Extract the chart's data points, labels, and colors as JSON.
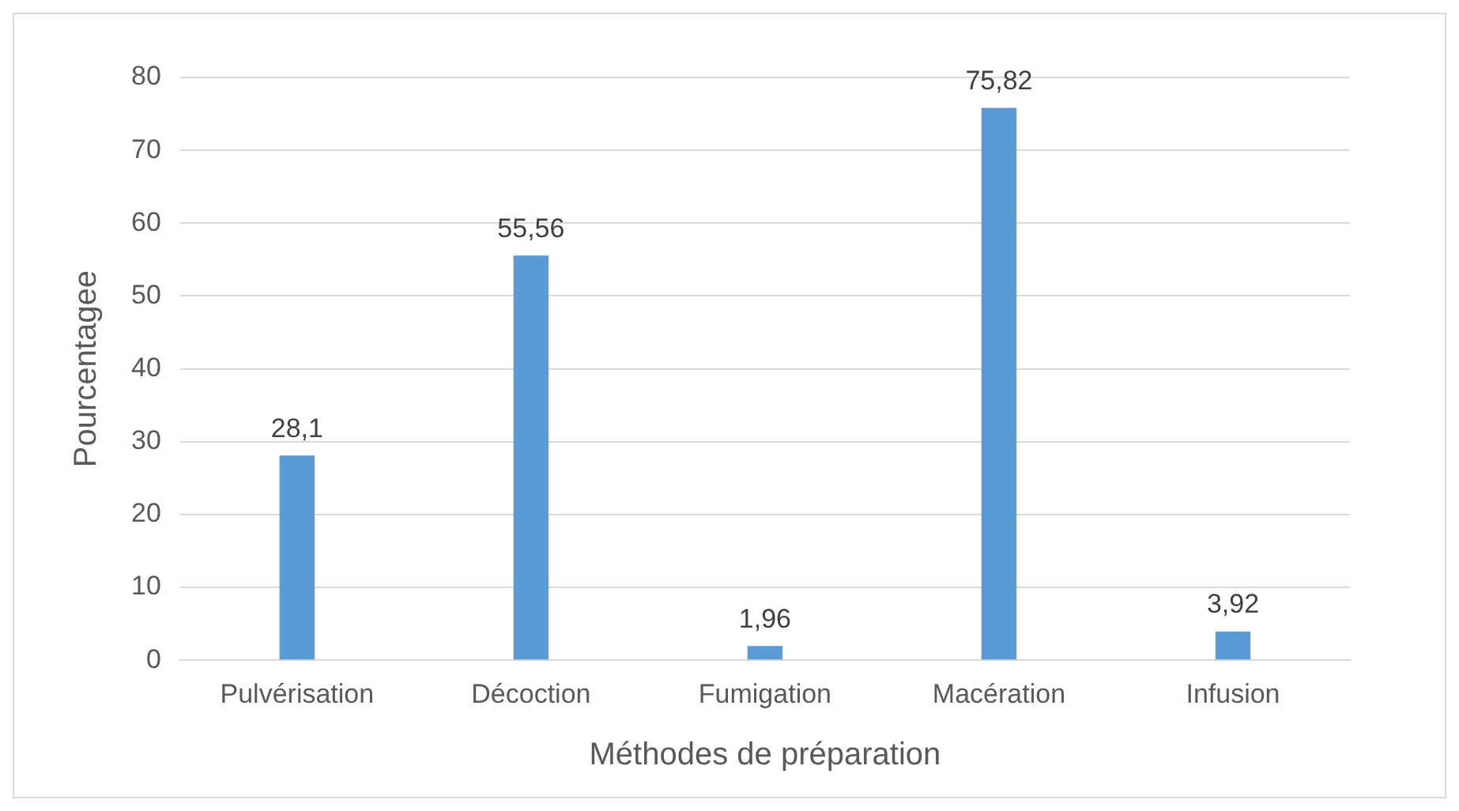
{
  "chart_data": {
    "type": "bar",
    "xlabel": "Méthodes de préparation",
    "ylabel": "Pourcentagee",
    "categories": [
      "Pulvérisation",
      "Décoction",
      "Fumigation",
      "Macération",
      "Infusion"
    ],
    "values": [
      28.1,
      55.56,
      1.96,
      75.82,
      3.92
    ],
    "value_labels": [
      "28,1",
      "55,56",
      "1,96",
      "75,82",
      "3,92"
    ],
    "color": "#5b9bd5",
    "ylim": [
      0,
      80
    ],
    "yticks": [
      0,
      10,
      20,
      30,
      40,
      50,
      60,
      70,
      80
    ],
    "grid": "y",
    "legend": false
  }
}
